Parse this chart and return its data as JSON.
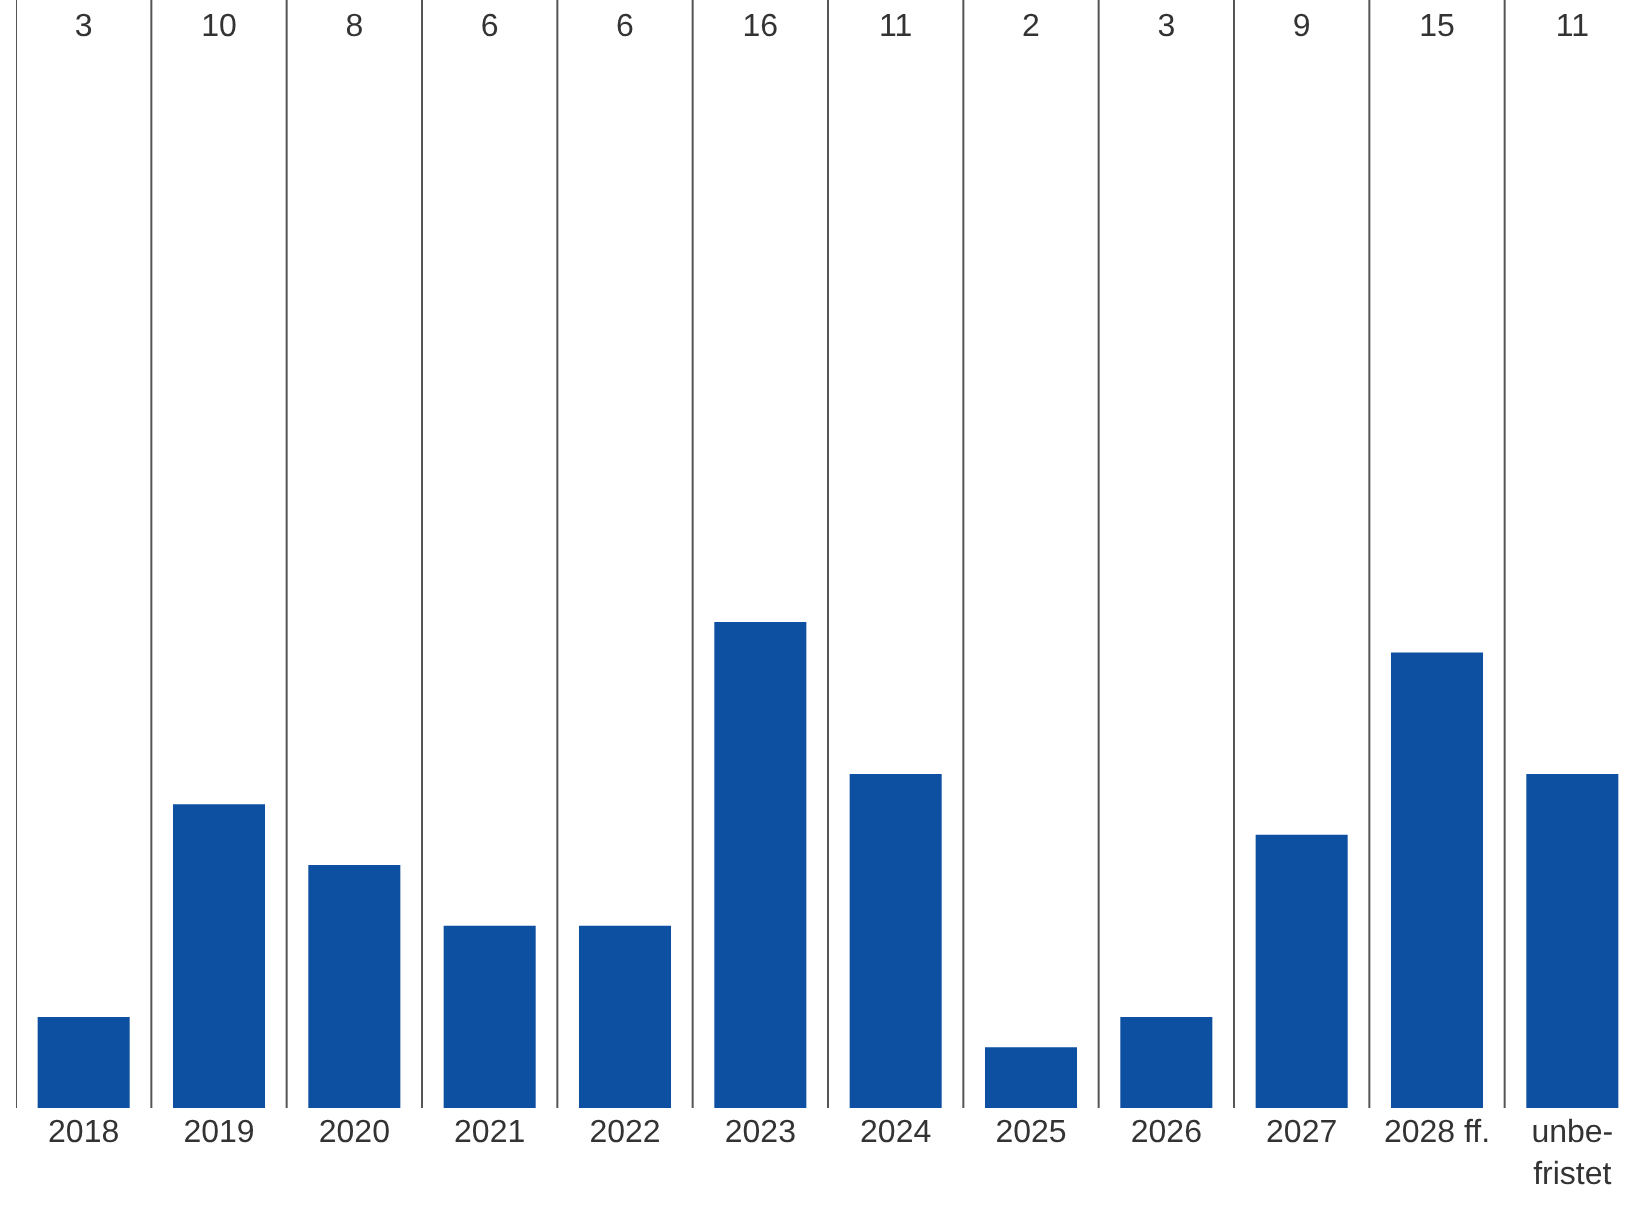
{
  "chart_data": {
    "type": "bar",
    "categories": [
      "2018",
      "2019",
      "2020",
      "2021",
      "2022",
      "2023",
      "2024",
      "2025",
      "2026",
      "2027",
      "2028 ff.",
      "unbe-\nfristet"
    ],
    "values": [
      3,
      10,
      8,
      6,
      6,
      16,
      11,
      2,
      3,
      9,
      15,
      11
    ],
    "color": "#0d4fa0",
    "data_labels": true,
    "grid": "x"
  }
}
